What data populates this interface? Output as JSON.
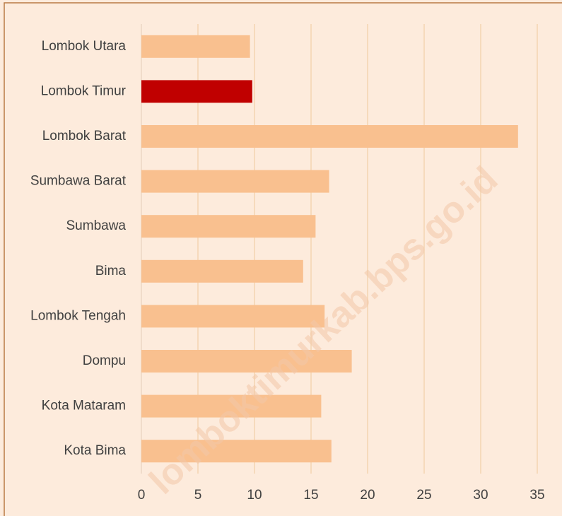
{
  "chart_data": {
    "type": "barh",
    "categories": [
      "Lombok Utara",
      "Lombok Timur",
      "Lombok Barat",
      "Sumbawa Barat",
      "Sumbawa",
      "Bima",
      "Lombok Tengah",
      "Dompu",
      "Kota Mataram",
      "Kota Bima"
    ],
    "values": [
      9.6,
      9.8,
      33.3,
      16.6,
      15.4,
      14.3,
      16.2,
      18.6,
      15.9,
      16.8
    ],
    "colors": [
      "#f9c08f",
      "#c00000",
      "#f9c08f",
      "#f9c08f",
      "#f9c08f",
      "#f9c08f",
      "#f9c08f",
      "#f9c08f",
      "#f9c08f",
      "#f9c08f"
    ],
    "xlim": [
      0,
      35
    ],
    "xticks": [
      0,
      5,
      10,
      15,
      20,
      25,
      30,
      35
    ],
    "grid": true,
    "watermark": "lomboktimurkab.bps.go.id"
  }
}
